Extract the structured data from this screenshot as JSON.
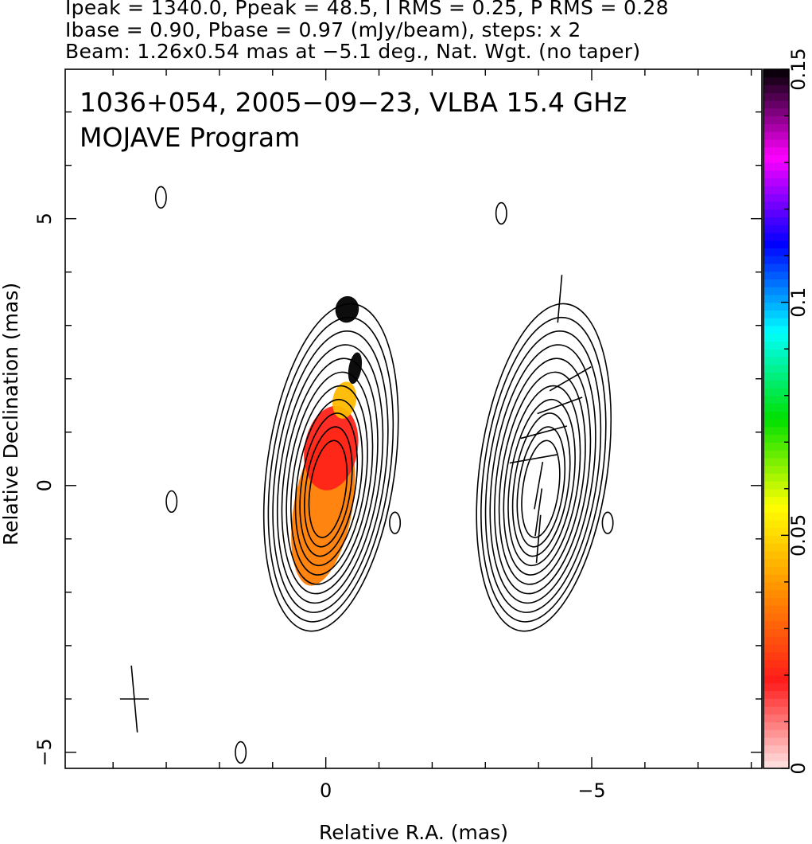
{
  "header": {
    "line1": "Ipeak = 1340.0, Ppeak = 48.5, I RMS = 0.25, P RMS = 0.28",
    "line2": "Ibase = 0.90, Pbase = 0.97 (mJy/beam), steps: x 2",
    "line3": "Beam: 1.26x0.54 mas at −5.1 deg., Nat. Wgt. (no taper)"
  },
  "chart_data": {
    "type": "heatmap",
    "title": "1036+054, 2005−09−23, VLBA 15.4 GHz",
    "subtitle": "MOJAVE Program",
    "xlabel": "Relative R.A. (mas)",
    "ylabel": "Relative Declination (mas)",
    "xlim": [
      4.9,
      -8.2
    ],
    "ylim": [
      -5.3,
      7.8
    ],
    "x_ticks": [
      0,
      -5
    ],
    "x_tick_labels": [
      "0",
      "−5"
    ],
    "y_ticks": [
      5,
      0,
      -5
    ],
    "y_tick_labels": [
      "5",
      "0",
      "−5"
    ],
    "colorbar": {
      "range": [
        0,
        0.15
      ],
      "ticks": [
        0,
        0.05,
        0.1,
        0.15
      ],
      "tick_labels": [
        "0",
        "0.05",
        "0.1",
        "0.15"
      ],
      "colormap": [
        "#ffe6e6",
        "#ff1a1a",
        "#ff8c00",
        "#ffff00",
        "#00e000",
        "#00ffff",
        "#0000ff",
        "#ff00ff",
        "#000000"
      ]
    },
    "contour_levels_mJy_per_beam": [
      0.9,
      1.8,
      3.6,
      7.2,
      14.4,
      28.8,
      57.6,
      115.2,
      230.4,
      460.8,
      921.6
    ],
    "peak": {
      "stokes_I_mJy_per_beam": 1340.0,
      "polarized_mJy_per_beam": 48.5,
      "position_mas": [
        0.0,
        0.0
      ]
    },
    "beam": {
      "major_mas": 1.26,
      "minor_mas": 0.54,
      "pa_deg": -5.1
    },
    "panels": [
      {
        "name": "total intensity + fractional polarization",
        "center_ra_mas": 0.0
      },
      {
        "name": "polarized intensity + EVPA",
        "center_ra_mas": -4.0
      }
    ],
    "fractional_polarization_regions": [
      {
        "ra": 0.05,
        "dec": -0.4,
        "value": 0.035
      },
      {
        "ra": -0.1,
        "dec": 0.7,
        "value": 0.02
      },
      {
        "ra": -0.35,
        "dec": 1.6,
        "value": 0.045
      },
      {
        "ra": -0.55,
        "dec": 2.2,
        "value": 0.15
      },
      {
        "ra": -0.4,
        "dec": 3.3,
        "value": 0.15
      }
    ],
    "evpa_vectors": [
      {
        "ra": -4.6,
        "dec": 2.0,
        "angle_deg": 60
      },
      {
        "ra": -4.4,
        "dec": 1.5,
        "angle_deg": 70
      },
      {
        "ra": -4.1,
        "dec": 1.0,
        "angle_deg": 75
      },
      {
        "ra": -3.9,
        "dec": 0.5,
        "angle_deg": 80
      },
      {
        "ra": -4.0,
        "dec": 0.0,
        "angle_deg": 10
      },
      {
        "ra": -4.0,
        "dec": -0.5,
        "angle_deg": 8
      },
      {
        "ra": -4.0,
        "dec": -1.0,
        "angle_deg": 5
      },
      {
        "ra": -4.4,
        "dec": 3.5,
        "angle_deg": 5
      }
    ]
  }
}
